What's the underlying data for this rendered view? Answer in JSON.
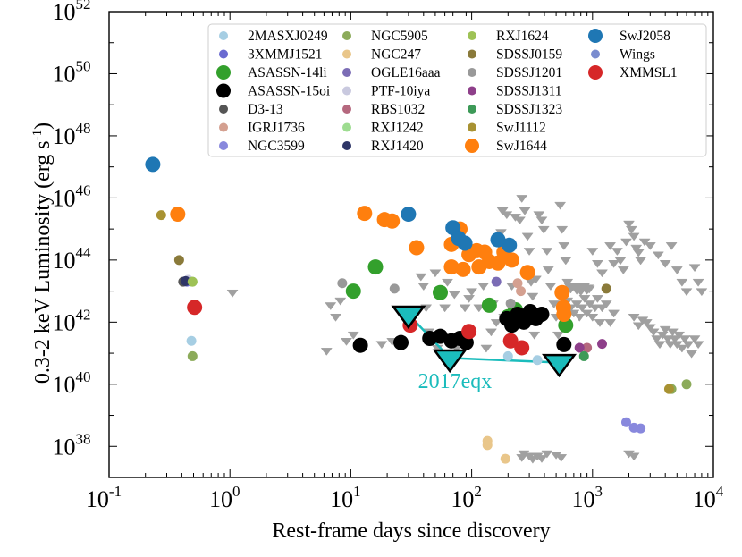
{
  "chart_data": {
    "type": "scatter",
    "xlabel": "Rest-frame days since discovery",
    "ylabel": "0.3-2 keV Luminosity (erg s",
    "ylabel_sup": "-1",
    "ylabel_close": ")",
    "x_scale": "log",
    "y_scale": "log",
    "xlim": [
      0.1,
      10000
    ],
    "ylim": [
      1e+37,
      1e+52
    ],
    "x_ticks": [
      {
        "value": 0.1,
        "base": "10",
        "exp": "-1"
      },
      {
        "value": 1,
        "base": "10",
        "exp": "0"
      },
      {
        "value": 10,
        "base": "10",
        "exp": "1"
      },
      {
        "value": 100,
        "base": "10",
        "exp": "2"
      },
      {
        "value": 1000,
        "base": "10",
        "exp": "3"
      },
      {
        "value": 10000,
        "base": "10",
        "exp": "4"
      }
    ],
    "y_ticks": [
      {
        "value": 1e+38,
        "base": "10",
        "exp": "38"
      },
      {
        "value": 1e+40,
        "base": "10",
        "exp": "40"
      },
      {
        "value": 1e+42,
        "base": "10",
        "exp": "42"
      },
      {
        "value": 1e+44,
        "base": "10",
        "exp": "44"
      },
      {
        "value": 1e+46,
        "base": "10",
        "exp": "46"
      },
      {
        "value": 1e+48,
        "base": "10",
        "exp": "48"
      },
      {
        "value": 1e+50,
        "base": "10",
        "exp": "50"
      },
      {
        "value": 1e+52,
        "base": "10",
        "exp": "52"
      }
    ],
    "grid": false,
    "legend_position": "top-right",
    "annotation": {
      "text": "2017eqx",
      "color": "#1bbcbc",
      "near_x": 60,
      "near_y": 2e+40
    },
    "series": [
      {
        "name": "2MASXJ0249",
        "color": "#a6cee3",
        "size": "small",
        "points": [
          [
            0.48,
            2.5e+41
          ],
          [
            200,
            8e+40
          ],
          [
            350,
            6e+40
          ]
        ]
      },
      {
        "name": "3XMMJ1521",
        "color": "#6a6ad0",
        "size": "small",
        "points": [
          [
            0.44,
            2e+43
          ]
        ]
      },
      {
        "name": "ASASSN-14li",
        "color": "#33a02c",
        "size": "large",
        "points": [
          [
            10.5,
            1e+43
          ],
          [
            16,
            6e+43
          ],
          [
            55,
            9e+42
          ],
          [
            140,
            3.5e+42
          ],
          [
            200,
            1.5e+42
          ],
          [
            230,
            2.5e+42
          ],
          [
            600,
            8e+41
          ]
        ]
      },
      {
        "name": "ASASSN-15oi",
        "color": "#000000",
        "size": "large",
        "points": [
          [
            12,
            1.8e+41
          ],
          [
            26,
            2.2e+41
          ],
          [
            45,
            3e+41
          ],
          [
            55,
            3.5e+41
          ],
          [
            68,
            2.5e+41
          ],
          [
            80,
            3e+41
          ],
          [
            90,
            2.2e+41
          ],
          [
            195,
            1.3e+42
          ],
          [
            215,
            8e+41
          ],
          [
            240,
            1.8e+42
          ],
          [
            270,
            1e+42
          ],
          [
            305,
            2.2e+42
          ],
          [
            340,
            1.3e+42
          ],
          [
            380,
            1.8e+42
          ],
          [
            580,
            1.9e+41
          ]
        ]
      },
      {
        "name": "D3-13",
        "color": "#555555",
        "size": "small",
        "points": [
          [
            0.41,
            2e+43
          ]
        ]
      },
      {
        "name": "IGRJ1736",
        "color": "#d4a090",
        "size": "small",
        "points": [
          [
            240,
            1.8e+43
          ],
          [
            255,
            1e+43
          ]
        ]
      },
      {
        "name": "NGC3599",
        "color": "#8888dd",
        "size": "small",
        "points": [
          [
            1900,
            6e+38
          ],
          [
            2200,
            4e+38
          ],
          [
            2500,
            3.8e+38
          ]
        ]
      },
      {
        "name": "NGC5905",
        "color": "#8cab5a",
        "size": "small",
        "points": [
          [
            0.49,
            8e+40
          ],
          [
            4500,
            7e+39
          ],
          [
            6000,
            1e+40
          ]
        ]
      },
      {
        "name": "NGC247",
        "color": "#e9c68a",
        "size": "small",
        "points": [
          [
            135,
            1.5e+38
          ],
          [
            135,
            1.1e+38
          ],
          [
            190,
            4e+37
          ]
        ]
      },
      {
        "name": "OGLE16aaa",
        "color": "#7b6cb5",
        "size": "small",
        "points": [
          [
            160,
            2e+43
          ]
        ]
      },
      {
        "name": "PTF-10iya",
        "color": "#c9c9df",
        "size": "small",
        "points": [
          [
            0.45,
            2.3e+43
          ]
        ]
      },
      {
        "name": "RBS1032",
        "color": "#b5687e",
        "size": "small",
        "points": [
          [
            900,
            1.5e+41
          ]
        ]
      },
      {
        "name": "RXJ1242",
        "color": "#9ddc90",
        "size": "small",
        "points": [
          [
            0.49,
            2e+43
          ]
        ]
      },
      {
        "name": "RXJ1420",
        "color": "#2e3567",
        "size": "small",
        "points": [
          [
            0.43,
            2.1e+43
          ]
        ]
      },
      {
        "name": "RXJ1624",
        "color": "#9ec255",
        "size": "small",
        "points": [
          [
            0.49,
            2e+43
          ]
        ]
      },
      {
        "name": "SDSSJ0159",
        "color": "#8a7a3a",
        "size": "small",
        "points": [
          [
            0.38,
            1e+44
          ],
          [
            1300,
            1.2e+43
          ]
        ]
      },
      {
        "name": "SDSSJ1201",
        "color": "#999999",
        "size": "small",
        "points": [
          [
            8.5,
            1.8e+43
          ],
          [
            23,
            1.2e+43
          ],
          [
            210,
            4e+42
          ]
        ]
      },
      {
        "name": "SDSSJ1311",
        "color": "#8e3f8a",
        "size": "small",
        "points": [
          [
            780,
            1.5e+41
          ],
          [
            1200,
            2e+41
          ]
        ]
      },
      {
        "name": "SDSSJ1323",
        "color": "#3d9a58",
        "size": "small",
        "points": [
          [
            850,
            8e+40
          ]
        ]
      },
      {
        "name": "SwJ1112",
        "color": "#a89232",
        "size": "small",
        "points": [
          [
            0.27,
            2.8e+45
          ],
          [
            4300,
            7e+39
          ]
        ]
      },
      {
        "name": "SwJ1644",
        "color": "#ff7f0e",
        "size": "large",
        "points": [
          [
            0.37,
            3e+45
          ],
          [
            13,
            3.2e+45
          ],
          [
            19,
            2e+45
          ],
          [
            22,
            1.8e+45
          ],
          [
            35,
            2.5e+44
          ],
          [
            68,
            3.2e+44
          ],
          [
            68,
            6e+43
          ],
          [
            80,
            1e+45
          ],
          [
            85,
            5e+43
          ],
          [
            95,
            1.5e+44
          ],
          [
            110,
            2e+44
          ],
          [
            115,
            6e+43
          ],
          [
            128,
            1.8e+44
          ],
          [
            140,
            9e+43
          ],
          [
            165,
            8e+43
          ],
          [
            185,
            1.8e+44
          ],
          [
            215,
            1e+44
          ],
          [
            290,
            4e+43
          ],
          [
            560,
            9e+42
          ],
          [
            575,
            3e+42
          ],
          [
            580,
            1.8e+42
          ]
        ]
      },
      {
        "name": "SwJ2058",
        "color": "#1f77b4",
        "size": "large",
        "points": [
          [
            0.23,
            1.2e+47
          ],
          [
            30,
            3e+45
          ],
          [
            70,
            1.1e+45
          ],
          [
            78,
            5e+44
          ],
          [
            88,
            3.5e+44
          ],
          [
            165,
            4.5e+44
          ],
          [
            205,
            3e+44
          ]
        ]
      },
      {
        "name": "Wings",
        "color": "#7a8ccf",
        "size": "small",
        "points": []
      },
      {
        "name": "XMMSL1",
        "color": "#d62728",
        "size": "large",
        "points": [
          [
            0.51,
            3e+42
          ],
          [
            31,
            8e+41
          ],
          [
            95,
            5e+41
          ],
          [
            210,
            2.5e+41
          ],
          [
            260,
            1.5e+41
          ]
        ]
      }
    ],
    "upper_limits": {
      "color": "#a0a0a0",
      "points": [
        [
          1.05,
          9e+42
        ],
        [
          6.8,
          3.5e+42
        ],
        [
          7.5,
          1.5e+42
        ],
        [
          6.3,
          1.2e+41
        ],
        [
          8.2,
          5e+42
        ],
        [
          9.2,
          2.5e+41
        ],
        [
          10.5,
          4e+41
        ],
        [
          18,
          2e+41
        ],
        [
          22,
          2.5e+41
        ],
        [
          38,
          3e+43
        ],
        [
          40,
          1.5e+43
        ],
        [
          42,
          3e+42
        ],
        [
          44,
          5e+41
        ],
        [
          50,
          4e+43
        ],
        [
          52,
          1.5e+41
        ],
        [
          60,
          3e+42
        ],
        [
          63,
          2e+43
        ],
        [
          72,
          8e+42
        ],
        [
          75,
          1.5e+41
        ],
        [
          88,
          3e+42
        ],
        [
          95,
          6e+42
        ],
        [
          100,
          1e+43
        ],
        [
          115,
          3e+42
        ],
        [
          125,
          1.5e+43
        ],
        [
          132,
          1.5e+41
        ],
        [
          145,
          5e+41
        ],
        [
          150,
          4e+42
        ],
        [
          160,
          1e+42
        ],
        [
          175,
          8e+44
        ],
        [
          180,
          4e+45
        ],
        [
          185,
          1.5e+42
        ],
        [
          195,
          3e+45
        ],
        [
          200,
          4e+44
        ],
        [
          230,
          2.5e+45
        ],
        [
          250,
          2e+45
        ],
        [
          215,
          1.5e+43
        ],
        [
          260,
          1e+46
        ],
        [
          275,
          4e+45
        ],
        [
          290,
          6e+44
        ],
        [
          300,
          2e+44
        ],
        [
          310,
          2e+43
        ],
        [
          320,
          7e+42
        ],
        [
          330,
          4e+41
        ],
        [
          340,
          2.5e+43
        ],
        [
          360,
          3e+45
        ],
        [
          380,
          2e+45
        ],
        [
          395,
          1e+45
        ],
        [
          420,
          2e+44
        ],
        [
          430,
          5e+43
        ],
        [
          450,
          1.5e+43
        ],
        [
          480,
          4e+42
        ],
        [
          500,
          1.5e+42
        ],
        [
          520,
          4e+41
        ],
        [
          540,
          6e+45
        ],
        [
          560,
          1e+45
        ],
        [
          580,
          3e+44
        ],
        [
          600,
          1e+44
        ],
        [
          620,
          2e+43
        ],
        [
          640,
          1.5e+43
        ],
        [
          660,
          1.2e+43
        ],
        [
          680,
          1.4e+43
        ],
        [
          700,
          1.5e+43
        ],
        [
          720,
          1.3e+43
        ],
        [
          740,
          1.1e+43
        ],
        [
          760,
          1.5e+43
        ],
        [
          780,
          1.2e+43
        ],
        [
          800,
          1e+43
        ],
        [
          820,
          1.4e+43
        ],
        [
          840,
          1.3e+43
        ],
        [
          860,
          1.5e+43
        ],
        [
          880,
          1.2e+43
        ],
        [
          900,
          1.1e+43
        ],
        [
          920,
          1.3e+43
        ],
        [
          940,
          1.2e+43
        ],
        [
          620,
          5e+42
        ],
        [
          660,
          3e+42
        ],
        [
          700,
          2e+42
        ],
        [
          740,
          4e+42
        ],
        [
          780,
          1.5e+42
        ],
        [
          820,
          3e+42
        ],
        [
          860,
          6e+42
        ],
        [
          900,
          2e+42
        ],
        [
          950,
          4e+42
        ],
        [
          1000,
          1.5e+42
        ],
        [
          1050,
          3e+42
        ],
        [
          1100,
          6e+42
        ],
        [
          1150,
          1e+42
        ],
        [
          1200,
          3e+42
        ],
        [
          1300,
          4e+42
        ],
        [
          1400,
          1e+42
        ],
        [
          1500,
          2e+42
        ],
        [
          1000,
          2e+44
        ],
        [
          1100,
          8e+43
        ],
        [
          1200,
          4e+43
        ],
        [
          1400,
          3e+44
        ],
        [
          1500,
          8e+43
        ],
        [
          1600,
          2e+44
        ],
        [
          1700,
          1e+44
        ],
        [
          1800,
          5e+43
        ],
        [
          1900,
          4e+44
        ],
        [
          2000,
          1.5e+45
        ],
        [
          2100,
          1e+45
        ],
        [
          2200,
          6e+44
        ],
        [
          2300,
          2.5e+44
        ],
        [
          2400,
          1.8e+44
        ],
        [
          2500,
          1e+44
        ],
        [
          2700,
          4e+44
        ],
        [
          3000,
          3e+44
        ],
        [
          3500,
          1.5e+44
        ],
        [
          4000,
          8e+43
        ],
        [
          4500,
          3e+44
        ],
        [
          5000,
          5e+43
        ],
        [
          5500,
          2e+43
        ],
        [
          6000,
          1e+43
        ],
        [
          7000,
          6e+43
        ],
        [
          7500,
          2e+43
        ],
        [
          8000,
          1e+43
        ],
        [
          3200,
          5e+41
        ],
        [
          3400,
          3e+41
        ],
        [
          3600,
          2e+41
        ],
        [
          3800,
          4e+41
        ],
        [
          4000,
          6e+41
        ],
        [
          4200,
          3e+41
        ],
        [
          4400,
          2e+41
        ],
        [
          4600,
          5e+41
        ],
        [
          4800,
          3e+41
        ],
        [
          5000,
          2e+41
        ],
        [
          5200,
          4e+41
        ],
        [
          5500,
          1.5e+41
        ],
        [
          5800,
          3e+41
        ],
        [
          6200,
          2e+41
        ],
        [
          6600,
          1e+41
        ],
        [
          7000,
          3e+41
        ],
        [
          7500,
          2e+41
        ],
        [
          2800,
          1e+42
        ],
        [
          3000,
          7e+41
        ],
        [
          2600,
          1.2e+42
        ],
        [
          2400,
          8e+41
        ],
        [
          2200,
          1.5e+42
        ],
        [
          260,
          4.5e+37
        ],
        [
          270,
          6e+37
        ],
        [
          300,
          5e+37
        ],
        [
          320,
          4e+37
        ],
        [
          350,
          5e+37
        ],
        [
          380,
          4.2e+37
        ],
        [
          420,
          6e+37
        ],
        [
          500,
          5.5e+37
        ],
        [
          550,
          4.5e+37
        ],
        [
          2000,
          6e+37
        ],
        [
          2200,
          5e+37
        ]
      ]
    },
    "eqx_series": {
      "color": "#1bbcbc",
      "points": [
        [
          30,
          1.8e+42
        ],
        [
          66,
          7e+40
        ],
        [
          530,
          5e+40
        ]
      ]
    }
  }
}
